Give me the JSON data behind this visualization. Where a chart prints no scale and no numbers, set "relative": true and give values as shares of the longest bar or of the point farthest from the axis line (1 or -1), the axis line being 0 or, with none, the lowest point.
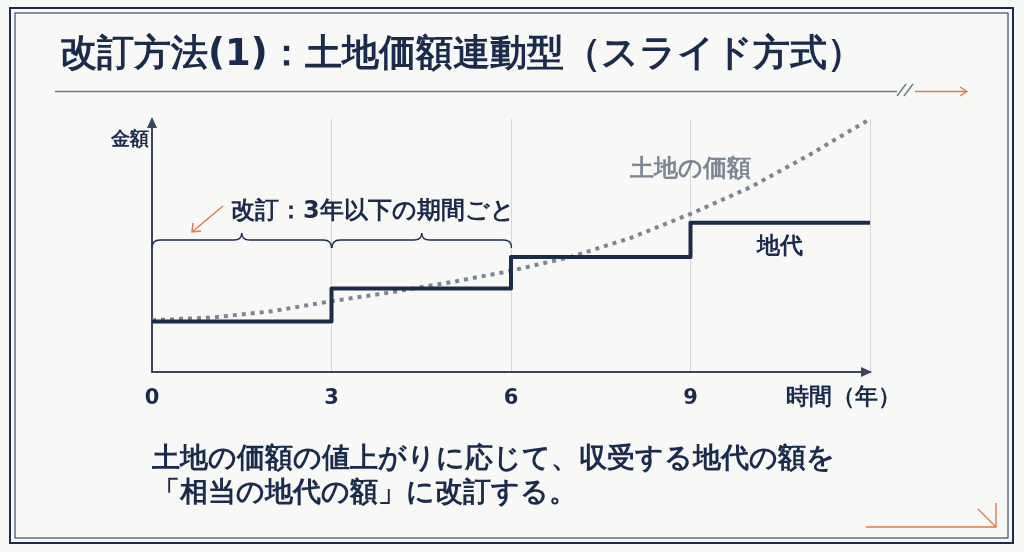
{
  "chart_data": {
    "type": "line",
    "title": "改訂方法(1)：土地価額連動型（スライド方式）",
    "xlabel": "時間（年）",
    "ylabel": "金額",
    "relative": true,
    "xlim": [
      0,
      12
    ],
    "xticks": [
      0,
      3,
      6,
      9,
      {
        "value": 12,
        "label": null
      }
    ],
    "grid": "x",
    "legend": false,
    "marker": "none",
    "series": [
      {
        "name": "地代",
        "type": "step",
        "color": "#1b2b4b",
        "x": [
          0,
          3,
          6,
          9,
          12
        ],
        "values": [
          0.2,
          0.33,
          0.455,
          0.59,
          0.59
        ]
      },
      {
        "name": "土地の価額",
        "type": "line",
        "line_style": "dotted",
        "color": "#7b8794",
        "x": [
          0,
          1,
          2,
          3,
          4,
          5,
          6,
          7,
          8,
          9,
          10,
          11,
          12
        ],
        "values": [
          0.205,
          0.215,
          0.24,
          0.28,
          0.315,
          0.355,
          0.4,
          0.455,
          0.53,
          0.625,
          0.73,
          0.86,
          1.0
        ]
      }
    ],
    "annotations": [
      "改訂：3年以下の期間ごと",
      "土地の価額の値上がりに応じて、収受する地代の額を「相当の地代の額」に改訂する。"
    ]
  }
}
